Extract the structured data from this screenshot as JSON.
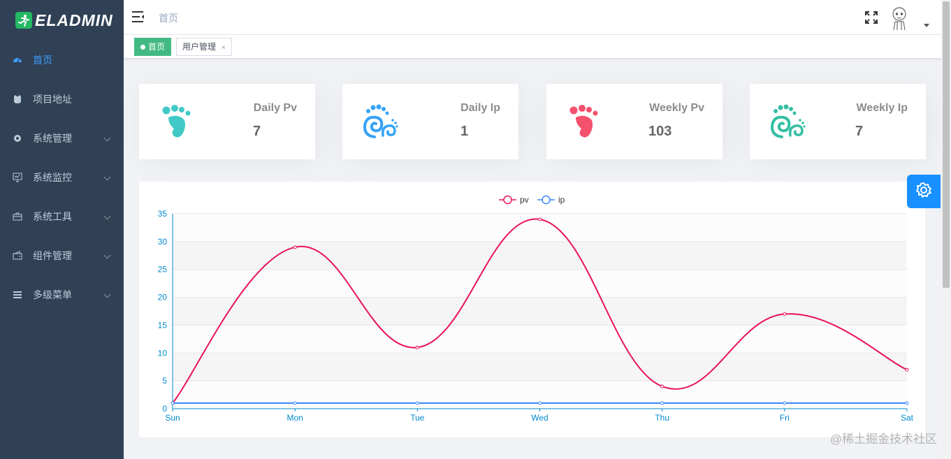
{
  "app": {
    "logo_text": "ELADMIN"
  },
  "sidebar": {
    "items": [
      {
        "label": "首页",
        "icon": "dashboard-icon",
        "active": true,
        "has_children": false
      },
      {
        "label": "项目地址",
        "icon": "github-icon",
        "active": false,
        "has_children": false
      },
      {
        "label": "系统管理",
        "icon": "gear-icon",
        "active": false,
        "has_children": true
      },
      {
        "label": "系统监控",
        "icon": "monitor-icon",
        "active": false,
        "has_children": true
      },
      {
        "label": "系统工具",
        "icon": "toolbox-icon",
        "active": false,
        "has_children": true
      },
      {
        "label": "组件管理",
        "icon": "wallet-icon",
        "active": false,
        "has_children": true
      },
      {
        "label": "多级菜单",
        "icon": "list-icon",
        "active": false,
        "has_children": true
      }
    ]
  },
  "header": {
    "breadcrumb": "首页"
  },
  "tags": [
    {
      "label": "首页",
      "active": true
    },
    {
      "label": "用户管理",
      "active": false,
      "close": "×"
    }
  ],
  "cards": [
    {
      "label": "Daily Pv",
      "value": "7",
      "icon": "footprint-icon",
      "color": "#40c9c6"
    },
    {
      "label": "Daily Ip",
      "value": "1",
      "icon": "footprint-swirl-icon",
      "color": "#36a3f7"
    },
    {
      "label": "Weekly Pv",
      "value": "103",
      "icon": "footprint-icon",
      "color": "#f4516c"
    },
    {
      "label": "Weekly Ip",
      "value": "7",
      "icon": "footprint-swirl-icon",
      "color": "#34bfa3"
    }
  ],
  "chart_data": {
    "type": "line",
    "categories": [
      "Sun",
      "Mon",
      "Tue",
      "Wed",
      "Thu",
      "Fri",
      "Sat"
    ],
    "series": [
      {
        "name": "pv",
        "values": [
          1,
          29,
          11,
          34,
          4,
          17,
          7
        ],
        "color": "#e8125a"
      },
      {
        "name": "ip",
        "values": [
          1,
          1,
          1,
          1,
          1,
          1,
          1
        ],
        "color": "#3888fa"
      }
    ],
    "yticks": [
      "0",
      "5",
      "10",
      "15",
      "20",
      "25",
      "30",
      "35"
    ],
    "ylim": [
      0,
      35
    ],
    "smooth": true,
    "legend": "top-center",
    "grid": true
  },
  "watermark": "@稀土掘金技术社区"
}
